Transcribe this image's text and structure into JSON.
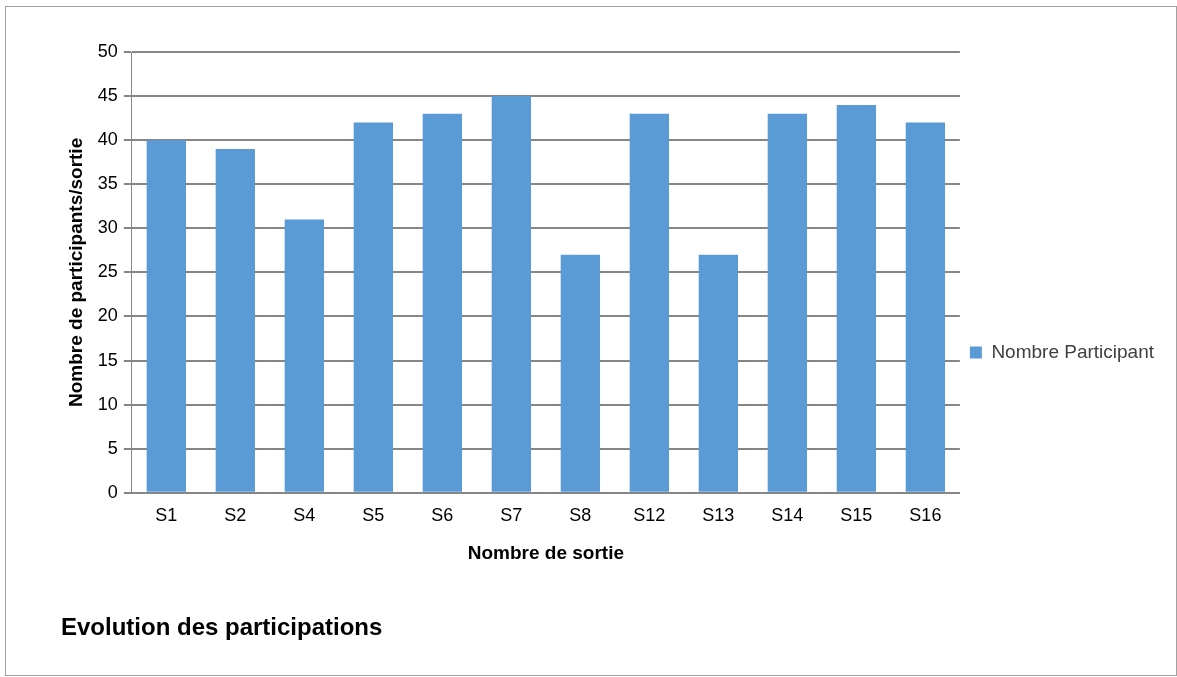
{
  "chart_data": {
    "type": "bar",
    "title": "Evolution des participations",
    "xlabel": "Nombre de sortie",
    "ylabel": "Nombre de participants/sortie",
    "categories": [
      "S1",
      "S2",
      "S4",
      "S5",
      "S6",
      "S7",
      "S8",
      "S12",
      "S13",
      "S14",
      "S15",
      "S16"
    ],
    "series": [
      {
        "name": "Nombre Participant",
        "color": "#5b9bd5",
        "values": [
          40,
          39,
          31,
          42,
          43,
          45,
          27,
          43,
          27,
          43,
          44,
          42
        ]
      }
    ],
    "ylim": [
      0,
      50
    ],
    "yticks": [
      0,
      5,
      10,
      15,
      20,
      25,
      30,
      35,
      40,
      45,
      50
    ],
    "grid": "y",
    "legend": "right"
  }
}
